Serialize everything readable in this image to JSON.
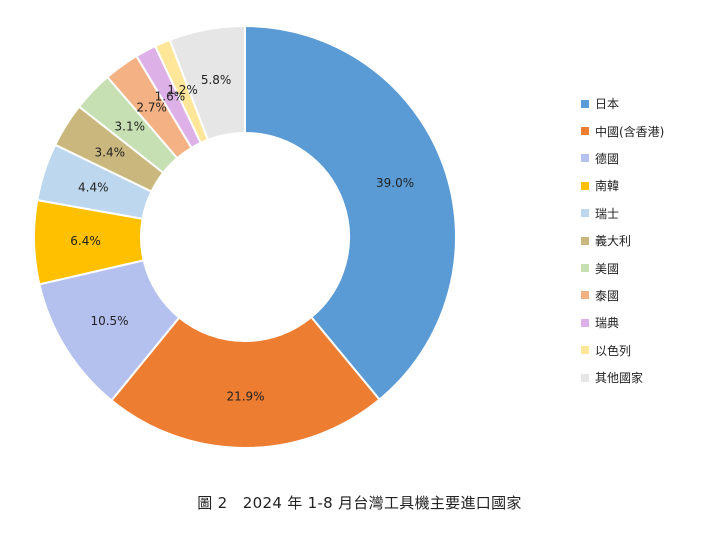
{
  "caption": "圖 2　2024 年 1-8 月台灣工具機主要進口國家",
  "chart_data": {
    "type": "pie",
    "donut": true,
    "legend_position": "right",
    "series": [
      {
        "label": "日本",
        "value": 39.0,
        "value_label": "39.0%",
        "color": "#5B9BD5"
      },
      {
        "label": "中國(含香港)",
        "value": 21.9,
        "value_label": "21.9%",
        "color": "#ED7D31"
      },
      {
        "label": "德國",
        "value": 10.5,
        "value_label": "10.5%",
        "color": "#B4C0EE"
      },
      {
        "label": "南韓",
        "value": 6.4,
        "value_label": "6.4%",
        "color": "#FFC000"
      },
      {
        "label": "瑞士",
        "value": 4.4,
        "value_label": "4.4%",
        "color": "#BDD7EE"
      },
      {
        "label": "義大利",
        "value": 3.4,
        "value_label": "3.4%",
        "color": "#C9B77D"
      },
      {
        "label": "美國",
        "value": 3.1,
        "value_label": "3.1%",
        "color": "#C6E0B4"
      },
      {
        "label": "泰國",
        "value": 2.7,
        "value_label": "2.7%",
        "color": "#F4B183"
      },
      {
        "label": "瑞典",
        "value": 1.6,
        "value_label": "1.6%",
        "color": "#DDB1E7"
      },
      {
        "label": "以色列",
        "value": 1.2,
        "value_label": "1.2%",
        "color": "#FFE699"
      },
      {
        "label": "其他國家",
        "value": 5.8,
        "value_label": "5.8%",
        "color": "#E7E6E6"
      }
    ]
  }
}
